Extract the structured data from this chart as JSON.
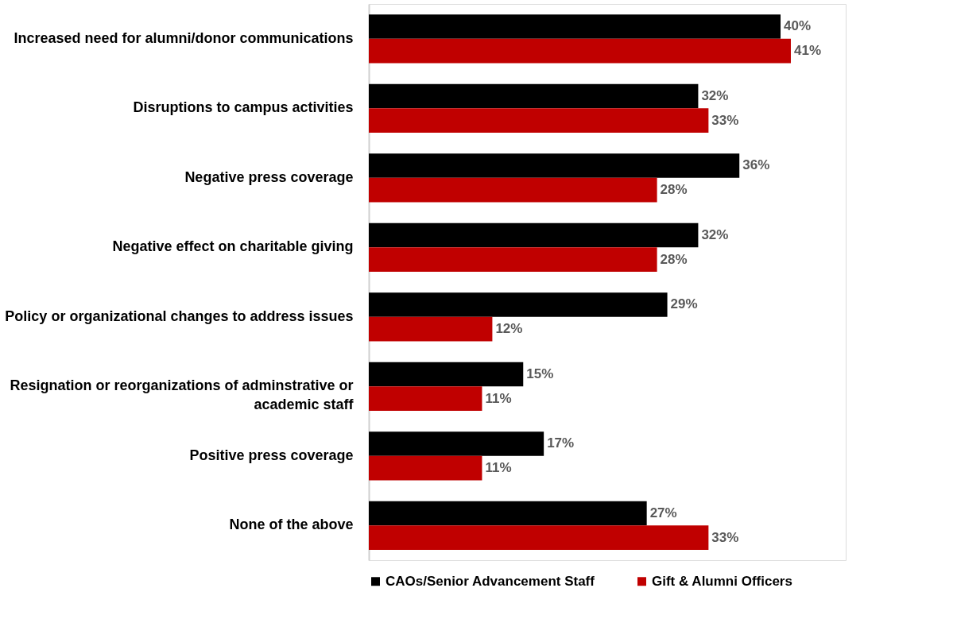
{
  "chart_data": {
    "type": "bar",
    "orientation": "horizontal",
    "categories": [
      "Increased need for alumni/donor communications",
      "Disruptions to campus activities",
      "Negative press coverage",
      "Negative effect on charitable giving",
      "Policy or organizational changes to address issues",
      "Resignation or reorganizations of adminstrative or academic staff",
      "Positive press coverage",
      "None of the above"
    ],
    "series": [
      {
        "name": "CAOs/Senior Advancement Staff",
        "color": "#000000",
        "values": [
          40,
          32,
          36,
          32,
          29,
          15,
          17,
          27
        ],
        "value_labels": [
          "40%",
          "32%",
          "36%",
          "32%",
          "29%",
          "15%",
          "17%",
          "27%"
        ]
      },
      {
        "name": "Gift & Alumni Officers",
        "color": "#c00000",
        "values": [
          41,
          33,
          28,
          28,
          12,
          11,
          11,
          33
        ],
        "value_labels": [
          "41%",
          "33%",
          "28%",
          "28%",
          "12%",
          "11%",
          "11%",
          "33%"
        ]
      }
    ],
    "legend": "bottom",
    "grid": false,
    "tick_labels": "y"
  }
}
